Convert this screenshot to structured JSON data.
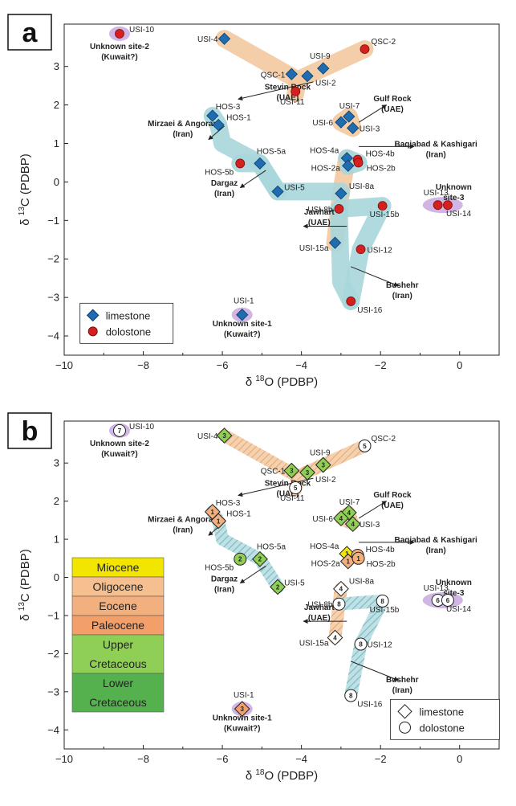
{
  "colors": {
    "limestone": "#1f6cb0",
    "dolostone": "#d6201f",
    "orange_band": "#f2c9a0",
    "teal_band": "#a9d6dc",
    "purple_halo": "#c9a8e0",
    "miocene": "#f2e600",
    "oligocene": "#f6bf8f",
    "eocene": "#f3b07f",
    "paleocene": "#f29f6a",
    "upper_cretaceous": "#8fcf55",
    "lower_cretaceous": "#55b14e"
  },
  "chart_data": [
    {
      "panel": "a",
      "type": "scatter",
      "xlabel": "δ 18O (PDBP)",
      "ylabel": "δ 13C (PDBP)",
      "xlim": [
        -10,
        1
      ],
      "ylim": [
        -4.5,
        4.1
      ],
      "xticks": [
        -10,
        -8,
        -6,
        -4,
        -2,
        0
      ],
      "yticks": [
        -4,
        -3,
        -2,
        -1,
        0,
        1,
        2,
        3
      ],
      "grid": false,
      "legend_position": "bottom-left",
      "legend": [
        {
          "label": "limestone",
          "marker": "diamond"
        },
        {
          "label": "dolostone",
          "marker": "circle"
        }
      ],
      "points": [
        {
          "label": "USI-10",
          "x": -8.6,
          "y": 3.85,
          "type": "dolostone"
        },
        {
          "label": "USI-4",
          "x": -5.95,
          "y": 3.72,
          "type": "limestone"
        },
        {
          "label": "QSC-2",
          "x": -2.4,
          "y": 3.45,
          "type": "dolostone"
        },
        {
          "label": "USI-9",
          "x": -3.45,
          "y": 2.95,
          "type": "limestone"
        },
        {
          "label": "QSC-1",
          "x": -4.25,
          "y": 2.8,
          "type": "limestone"
        },
        {
          "label": "USI-2",
          "x": -3.85,
          "y": 2.75,
          "type": "limestone"
        },
        {
          "label": "USI-11",
          "x": -4.15,
          "y": 2.35,
          "type": "dolostone"
        },
        {
          "label": "USI-7",
          "x": -2.8,
          "y": 1.7,
          "type": "limestone"
        },
        {
          "label": "USI-6",
          "x": -3.0,
          "y": 1.55,
          "type": "limestone"
        },
        {
          "label": "USI-3",
          "x": -2.7,
          "y": 1.4,
          "type": "limestone"
        },
        {
          "label": "HOS-3",
          "x": -6.25,
          "y": 1.72,
          "type": "limestone"
        },
        {
          "label": "HOS-1",
          "x": -6.1,
          "y": 1.48,
          "type": "limestone"
        },
        {
          "label": "HOS-4a",
          "x": -2.85,
          "y": 0.62,
          "type": "limestone"
        },
        {
          "label": "HOS-4b",
          "x": -2.58,
          "y": 0.58,
          "type": "dolostone"
        },
        {
          "label": "HOS-2a",
          "x": -2.82,
          "y": 0.42,
          "type": "limestone"
        },
        {
          "label": "HOS-2b",
          "x": -2.56,
          "y": 0.5,
          "type": "dolostone"
        },
        {
          "label": "HOS-5a",
          "x": -5.05,
          "y": 0.48,
          "type": "limestone"
        },
        {
          "label": "HOS-5b",
          "x": -5.55,
          "y": 0.48,
          "type": "dolostone"
        },
        {
          "label": "USI-5",
          "x": -4.6,
          "y": -0.25,
          "type": "limestone"
        },
        {
          "label": "USI-8a",
          "x": -3.0,
          "y": -0.3,
          "type": "limestone"
        },
        {
          "label": "USI-8b",
          "x": -3.05,
          "y": -0.7,
          "type": "dolostone"
        },
        {
          "label": "USI-15b",
          "x": -1.95,
          "y": -0.62,
          "type": "dolostone"
        },
        {
          "label": "USI-13",
          "x": -0.55,
          "y": -0.6,
          "type": "dolostone"
        },
        {
          "label": "USI-14",
          "x": -0.3,
          "y": -0.6,
          "type": "dolostone"
        },
        {
          "label": "USI-15a",
          "x": -3.15,
          "y": -1.58,
          "type": "limestone"
        },
        {
          "label": "USI-12",
          "x": -2.5,
          "y": -1.75,
          "type": "dolostone"
        },
        {
          "label": "USI-16",
          "x": -2.75,
          "y": -3.1,
          "type": "dolostone"
        },
        {
          "label": "USI-1",
          "x": -5.5,
          "y": -3.45,
          "type": "limestone"
        }
      ],
      "site_labels": [
        {
          "lines": [
            "Unknown site-2",
            "(Kuwait?)"
          ]
        },
        {
          "lines": [
            "Stevin Rock",
            "(UAE)"
          ]
        },
        {
          "lines": [
            "Gulf Rock",
            "(UAE)"
          ]
        },
        {
          "lines": [
            "Mirzaei & Angoran",
            "(Iran)"
          ]
        },
        {
          "lines": [
            "Baqiabad & Kashigari",
            "(Iran)"
          ]
        },
        {
          "lines": [
            "Dargaz",
            "(Iran)"
          ]
        },
        {
          "lines": [
            "Unknown",
            "site-3"
          ]
        },
        {
          "lines": [
            "Jawhart",
            "(UAE)"
          ]
        },
        {
          "lines": [
            "Bushehr",
            "(Iran)"
          ]
        },
        {
          "lines": [
            "Unknown site-1",
            "(Kuwait?)"
          ]
        }
      ]
    },
    {
      "panel": "b",
      "type": "scatter",
      "xlabel": "δ 18O (PDBP)",
      "ylabel": "δ 13C (PDBP)",
      "xlim": [
        -10,
        1
      ],
      "ylim": [
        -4.5,
        4.1
      ],
      "xticks": [
        -10,
        -8,
        -6,
        -4,
        -2,
        0
      ],
      "yticks": [
        -4,
        -3,
        -2,
        -1,
        0,
        1,
        2,
        3
      ],
      "grid": false,
      "legend_position": "bottom-right",
      "legend": [
        {
          "label": "limestone",
          "marker": "diamond"
        },
        {
          "label": "dolostone",
          "marker": "circle"
        }
      ],
      "age_legend": [
        {
          "label": "Miocene",
          "code": 1
        },
        {
          "label": "Oligocene",
          "code": 2
        },
        {
          "label": "Eocene",
          "code": 3
        },
        {
          "label": "Paleocene",
          "code": 4
        },
        {
          "label": "Upper Cretaceous",
          "lines": [
            "Upper",
            "Cretaceous"
          ],
          "code": 5
        },
        {
          "label": "Lower Cretaceous",
          "lines": [
            "Lower",
            "Cretaceous"
          ],
          "code": 6
        }
      ],
      "points": [
        {
          "label": "USI-10",
          "x": -8.6,
          "y": 3.85,
          "type": "dolostone",
          "num": "7"
        },
        {
          "label": "USI-4",
          "x": -5.95,
          "y": 3.72,
          "type": "limestone",
          "num": "3",
          "age": 5
        },
        {
          "label": "QSC-2",
          "x": -2.4,
          "y": 3.45,
          "type": "dolostone",
          "num": "5"
        },
        {
          "label": "USI-9",
          "x": -3.45,
          "y": 2.95,
          "type": "limestone",
          "num": "3",
          "age": 5
        },
        {
          "label": "QSC-1",
          "x": -4.25,
          "y": 2.8,
          "type": "limestone",
          "num": "3",
          "age": 5
        },
        {
          "label": "USI-2",
          "x": -3.85,
          "y": 2.75,
          "type": "limestone",
          "num": "3",
          "age": 5
        },
        {
          "label": "USI-11",
          "x": -4.15,
          "y": 2.35,
          "type": "dolostone",
          "num": "5"
        },
        {
          "label": "USI-7",
          "x": -2.8,
          "y": 1.7,
          "type": "limestone",
          "num": "4",
          "age": 5
        },
        {
          "label": "USI-6",
          "x": -3.0,
          "y": 1.55,
          "type": "limestone",
          "num": "4",
          "age": 5
        },
        {
          "label": "USI-3",
          "x": -2.7,
          "y": 1.4,
          "type": "limestone",
          "num": "4",
          "age": 5
        },
        {
          "label": "HOS-3",
          "x": -6.25,
          "y": 1.72,
          "type": "limestone",
          "num": "1",
          "age": 3
        },
        {
          "label": "HOS-1",
          "x": -6.1,
          "y": 1.48,
          "type": "limestone",
          "num": "1",
          "age": 3
        },
        {
          "label": "HOS-4a",
          "x": -2.85,
          "y": 0.62,
          "type": "limestone",
          "num": "1",
          "age": 1
        },
        {
          "label": "HOS-4b",
          "x": -2.58,
          "y": 0.58,
          "type": "dolostone",
          "num": "1",
          "age": 3
        },
        {
          "label": "HOS-2a",
          "x": -2.82,
          "y": 0.42,
          "type": "limestone",
          "num": "1",
          "age": 3
        },
        {
          "label": "HOS-2b",
          "x": -2.56,
          "y": 0.5,
          "type": "dolostone",
          "num": "1",
          "age": 3
        },
        {
          "label": "HOS-5a",
          "x": -5.05,
          "y": 0.48,
          "type": "limestone",
          "num": "2",
          "age": 5
        },
        {
          "label": "HOS-5b",
          "x": -5.55,
          "y": 0.48,
          "type": "dolostone",
          "num": "2",
          "age": 5
        },
        {
          "label": "USI-5",
          "x": -4.6,
          "y": -0.25,
          "type": "limestone",
          "num": "2",
          "age": 5
        },
        {
          "label": "USI-8a",
          "x": -3.0,
          "y": -0.3,
          "type": "limestone",
          "num": "4"
        },
        {
          "label": "USI-8b",
          "x": -3.05,
          "y": -0.7,
          "type": "dolostone",
          "num": "8"
        },
        {
          "label": "USI-15b",
          "x": -1.95,
          "y": -0.62,
          "type": "dolostone",
          "num": "8"
        },
        {
          "label": "USI-13",
          "x": -0.55,
          "y": -0.6,
          "type": "dolostone",
          "num": "6"
        },
        {
          "label": "USI-14",
          "x": -0.3,
          "y": -0.6,
          "type": "dolostone",
          "num": "6"
        },
        {
          "label": "USI-15a",
          "x": -3.15,
          "y": -1.58,
          "type": "limestone",
          "num": "4"
        },
        {
          "label": "USI-12",
          "x": -2.5,
          "y": -1.75,
          "type": "dolostone",
          "num": "8"
        },
        {
          "label": "USI-16",
          "x": -2.75,
          "y": -3.1,
          "type": "dolostone",
          "num": "8"
        },
        {
          "label": "USI-1",
          "x": -5.5,
          "y": -3.45,
          "type": "limestone",
          "num": "3",
          "age": 4
        }
      ]
    }
  ]
}
